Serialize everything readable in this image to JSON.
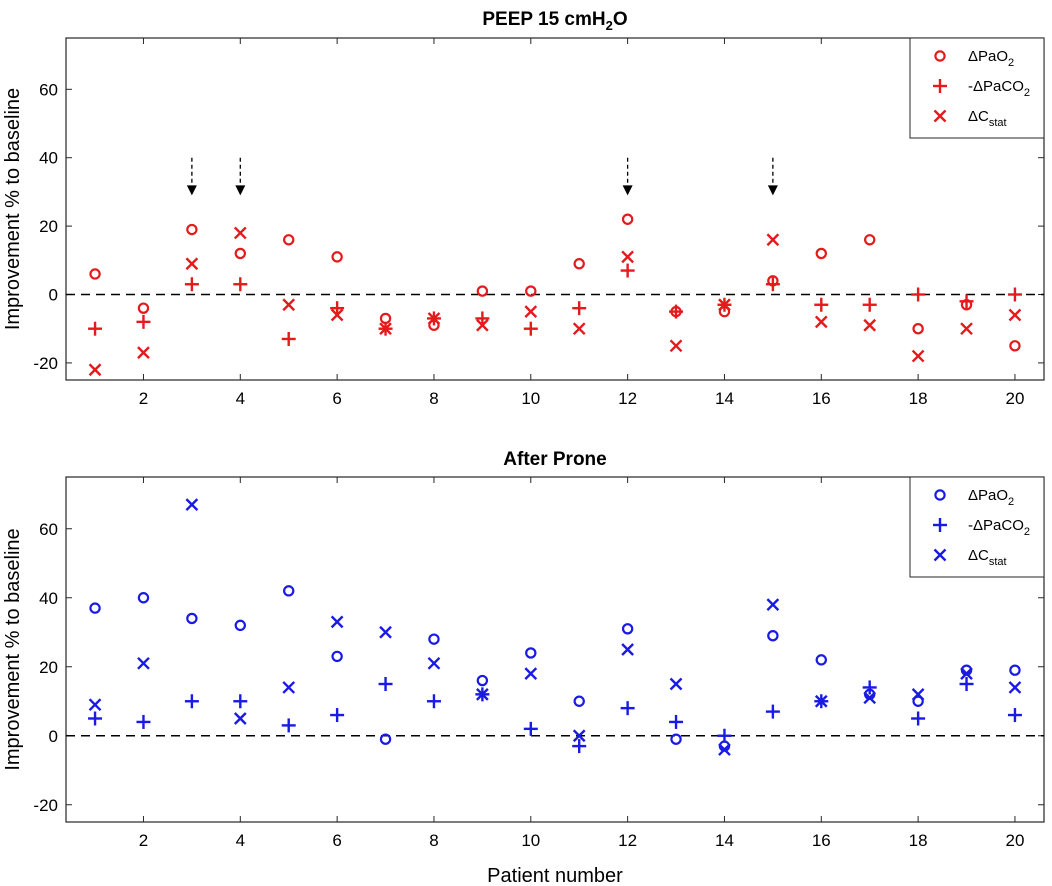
{
  "chart_data": [
    {
      "type": "scatter",
      "title": "PEEP 15 cmH",
      "title_sub": "2",
      "title_tail": "O",
      "xlabel": "",
      "ylabel": "Improvement % to baseline",
      "xlim": [
        0.4,
        20.6
      ],
      "ylim": [
        -25,
        75
      ],
      "xticks": [
        2,
        4,
        6,
        8,
        10,
        12,
        14,
        16,
        18,
        20
      ],
      "yticks": [
        -20,
        0,
        20,
        40,
        60
      ],
      "color": "#e41a1c",
      "legend_position": "top-right",
      "x": [
        1,
        2,
        3,
        4,
        5,
        6,
        7,
        8,
        9,
        10,
        11,
        12,
        13,
        14,
        15,
        16,
        17,
        18,
        19,
        20
      ],
      "series": [
        {
          "name": "ΔPaO",
          "sub": "2",
          "marker": "o",
          "values": [
            6,
            -4,
            19,
            12,
            16,
            11,
            -7,
            -9,
            1,
            1,
            9,
            22,
            -5,
            -5,
            4,
            12,
            16,
            -10,
            -3,
            -15
          ]
        },
        {
          "name": "-ΔPaCO",
          "sub": "2",
          "marker": "+",
          "values": [
            -10,
            -8,
            3,
            3,
            -13,
            -4,
            -10,
            -7,
            -7,
            -10,
            -4,
            7,
            -5,
            -3,
            3,
            -3,
            -3,
            0,
            -2,
            0
          ]
        },
        {
          "name": "ΔC",
          "sub": "stat",
          "marker": "x",
          "values": [
            -22,
            -17,
            9,
            18,
            -3,
            -6,
            -10,
            -7,
            -9,
            -5,
            -10,
            11,
            -15,
            -3,
            16,
            -8,
            -9,
            -18,
            -10,
            -6
          ]
        }
      ],
      "annotations": {
        "type": "arrow-down",
        "x": [
          3,
          4,
          12,
          15
        ]
      }
    },
    {
      "type": "scatter",
      "title": "After Prone",
      "title_sub": "",
      "title_tail": "",
      "xlabel": "Patient number",
      "ylabel": "Improvement % to baseline",
      "xlim": [
        0.4,
        20.6
      ],
      "ylim": [
        -25,
        75
      ],
      "xticks": [
        2,
        4,
        6,
        8,
        10,
        12,
        14,
        16,
        18,
        20
      ],
      "yticks": [
        -20,
        0,
        20,
        40,
        60
      ],
      "color": "#1a1ae6",
      "legend_position": "top-right",
      "x": [
        1,
        2,
        3,
        4,
        5,
        6,
        7,
        8,
        9,
        10,
        11,
        12,
        13,
        14,
        15,
        16,
        17,
        18,
        19,
        20
      ],
      "series": [
        {
          "name": "ΔPaO",
          "sub": "2",
          "marker": "o",
          "values": [
            37,
            40,
            34,
            32,
            42,
            23,
            -1,
            28,
            16,
            24,
            10,
            31,
            -1,
            -3,
            29,
            22,
            12,
            10,
            19,
            19
          ]
        },
        {
          "name": "-ΔPaCO",
          "sub": "2",
          "marker": "+",
          "values": [
            5,
            4,
            10,
            10,
            3,
            6,
            15,
            10,
            12,
            2,
            -3,
            8,
            4,
            0,
            7,
            10,
            14,
            5,
            15,
            6
          ]
        },
        {
          "name": "ΔC",
          "sub": "stat",
          "marker": "x",
          "values": [
            9,
            21,
            67,
            5,
            14,
            33,
            30,
            21,
            12,
            18,
            0,
            25,
            15,
            -4,
            38,
            10,
            11,
            12,
            18,
            14
          ]
        }
      ],
      "annotations": {
        "type": "none",
        "x": []
      }
    }
  ]
}
